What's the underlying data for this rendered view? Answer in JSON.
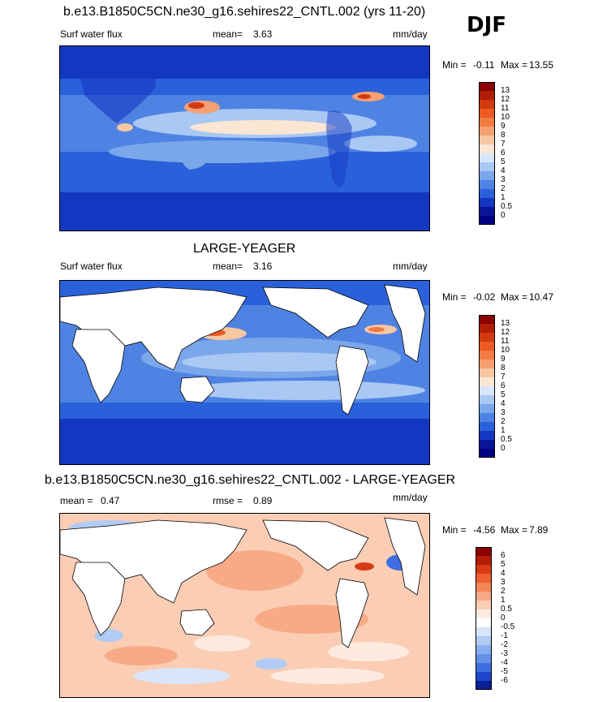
{
  "season": "DJF",
  "panels": [
    {
      "title": "b.e13.B1850C5CN.ne30_g16.sehires22_CNTL.002 (yrs 11-20)",
      "variable": "Surf water flux",
      "mean_label": "mean=",
      "mean_value": "3.63",
      "units": "mm/day",
      "min_label": "Min =",
      "min_value": "-0.11",
      "max_label": "Max =",
      "max_value": "13.55",
      "colorbar": {
        "labels": [
          "13",
          "12",
          "11",
          "10",
          "9",
          "8",
          "7",
          "6",
          "5",
          "4",
          "3",
          "2",
          "1",
          "0.5",
          "0"
        ],
        "colors": [
          "#8b0000",
          "#b01f05",
          "#d33a10",
          "#ec5b22",
          "#f27b43",
          "#f5a070",
          "#f7c7a1",
          "#fbe6d3",
          "#d7e6fb",
          "#a9c8f3",
          "#7aa7ea",
          "#4f83e3",
          "#2a60da",
          "#1437c1",
          "#0a1496",
          "#000080"
        ]
      }
    },
    {
      "title": "LARGE-YEAGER",
      "variable": "Surf water flux",
      "mean_label": "mean=",
      "mean_value": "3.16",
      "units": "mm/day",
      "min_label": "Min =",
      "min_value": "-0.02",
      "max_label": "Max =",
      "max_value": "10.47",
      "colorbar": {
        "labels": [
          "13",
          "12",
          "11",
          "10",
          "9",
          "8",
          "7",
          "6",
          "5",
          "4",
          "3",
          "2",
          "1",
          "0.5",
          "0"
        ],
        "colors": [
          "#8b0000",
          "#b01f05",
          "#d33a10",
          "#ec5b22",
          "#f27b43",
          "#f5a070",
          "#f7c7a1",
          "#fbe6d3",
          "#d7e6fb",
          "#a9c8f3",
          "#7aa7ea",
          "#4f83e3",
          "#2a60da",
          "#1437c1",
          "#0a1496",
          "#000080"
        ]
      }
    },
    {
      "title": "b.e13.B1850C5CN.ne30_g16.sehires22_CNTL.002 - LARGE-YEAGER",
      "mean_label": "mean =",
      "mean_value": "0.47",
      "rmse_label": "rmse =",
      "rmse_value": "0.89",
      "units": "mm/day",
      "min_label": "Min =",
      "min_value": "-4.56",
      "max_label": "Max =",
      "max_value": "7.89",
      "colorbar": {
        "labels": [
          "6",
          "5",
          "4",
          "3",
          "2",
          "1",
          "0.5",
          "0",
          "-0.5",
          "-1",
          "-2",
          "-3",
          "-4",
          "-5",
          "-6"
        ],
        "colors": [
          "#8b0000",
          "#b41d08",
          "#d83a14",
          "#ef6030",
          "#f48558",
          "#f8aa86",
          "#fbcdb4",
          "#fdebe0",
          "#ffffff",
          "#d8e5fa",
          "#b1cbf5",
          "#89aef0",
          "#6590ea",
          "#3f6ee0",
          "#1e48cc",
          "#0a1e96"
        ]
      }
    }
  ]
}
